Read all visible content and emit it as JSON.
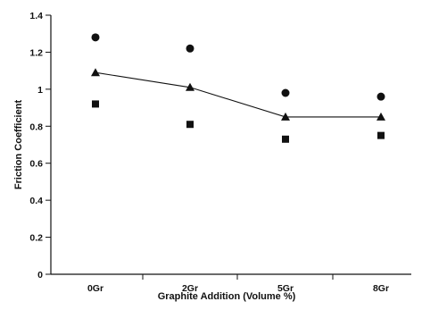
{
  "chart_data": {
    "type": "scatter",
    "title": "",
    "xlabel": "Graphite Addition (Volume %)",
    "ylabel": "Friction Coefficient",
    "categories": [
      "0Gr",
      "2Gr",
      "5Gr",
      "8Gr"
    ],
    "ylim": [
      0,
      1.4
    ],
    "yticks": [
      0,
      0.2,
      0.4,
      0.6,
      0.8,
      1,
      1.2,
      1.4
    ],
    "ytick_labels": [
      "0",
      "0.2",
      "0.4",
      "0.6",
      "0.8",
      "1",
      "1.2",
      "1.4"
    ],
    "grid": false,
    "legend": "none",
    "series": [
      {
        "marker": "circle",
        "connected": false,
        "values": [
          1.28,
          1.22,
          0.98,
          0.96
        ]
      },
      {
        "marker": "triangle",
        "connected": true,
        "values": [
          1.09,
          1.01,
          0.85,
          0.85
        ]
      },
      {
        "marker": "square",
        "connected": false,
        "values": [
          0.92,
          0.81,
          0.73,
          0.75
        ]
      }
    ],
    "colors": {
      "marks": "#111111",
      "axis": "#111111"
    }
  }
}
